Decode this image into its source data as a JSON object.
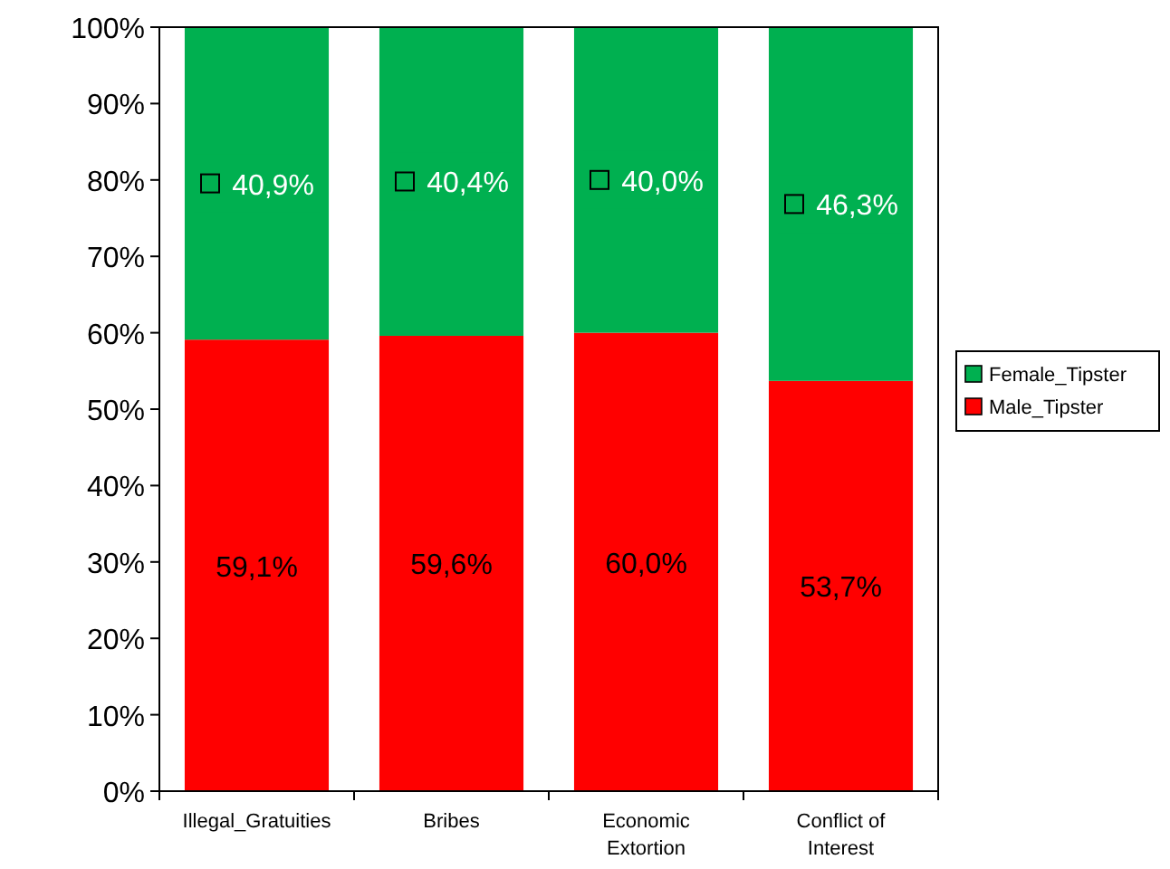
{
  "chart_data": {
    "type": "bar",
    "stacked": true,
    "categories": [
      "Illegal_Gratuities",
      "Bribes",
      "Economic Extortion",
      "Conflict of Interest"
    ],
    "series": [
      {
        "name": "Male_Tipster",
        "color": "#ff0000",
        "values": [
          59.1,
          59.6,
          60.0,
          53.7
        ],
        "value_labels": [
          "59,1%",
          "59,6%",
          "60,0%",
          "53,7%"
        ]
      },
      {
        "name": "Female_Tipster",
        "color": "#00b050",
        "values": [
          40.9,
          40.4,
          40.0,
          46.3
        ],
        "value_labels": [
          "40,9%",
          "40,4%",
          "40,0%",
          "46,3%"
        ]
      }
    ],
    "ylim": [
      0,
      100
    ],
    "yticks": [
      {
        "value": 0,
        "label": "0%"
      },
      {
        "value": 10,
        "label": "10%"
      },
      {
        "value": 20,
        "label": "20%"
      },
      {
        "value": 30,
        "label": "30%"
      },
      {
        "value": 40,
        "label": "40%"
      },
      {
        "value": 50,
        "label": "50%"
      },
      {
        "value": 60,
        "label": "60%"
      },
      {
        "value": 70,
        "label": "70%"
      },
      {
        "value": 80,
        "label": "80%"
      },
      {
        "value": 90,
        "label": "90%"
      },
      {
        "value": 100,
        "label": "100%"
      }
    ],
    "grid": false,
    "legend": "right"
  }
}
